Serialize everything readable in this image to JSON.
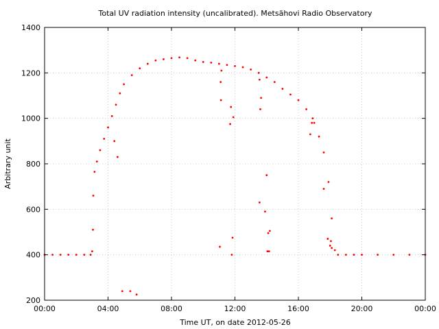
{
  "chart_data": {
    "type": "scatter",
    "title": "Total UV radiation intensity (uncalibrated). Metsähovi Radio Observatory",
    "xlabel": "Time UT, on date 2012-05-26",
    "ylabel": "Arbitrary unit",
    "xlim": [
      0,
      24
    ],
    "ylim": [
      200,
      1400
    ],
    "x_ticks": [
      0,
      4,
      8,
      12,
      16,
      20,
      24
    ],
    "x_tick_labels": [
      "00:00",
      "04:00",
      "08:00",
      "12:00",
      "16:00",
      "20:00",
      "00:00"
    ],
    "y_ticks": [
      200,
      400,
      600,
      800,
      1000,
      1200,
      1400
    ],
    "y_tick_labels": [
      "200",
      "400",
      "600",
      "800",
      "1000",
      "1200",
      "1400"
    ],
    "grid": true,
    "marker_color": "#ff0000",
    "series": [
      {
        "x": [
          0,
          0.5,
          1.0,
          1.5,
          2.0,
          2.5,
          2.9,
          3.15,
          3.3,
          3.5,
          3.75,
          4.0,
          4.25,
          4.5,
          4.75,
          5.0,
          5.5,
          6.0,
          6.5,
          7.0,
          7.5,
          8.0,
          8.5,
          9.0,
          9.5,
          10.0,
          10.5,
          11.0,
          11.5,
          12.0,
          12.5,
          13.0,
          13.5,
          14.0,
          14.5,
          15.0,
          15.5,
          16.0,
          16.5,
          17.0,
          17.3,
          17.6,
          17.9,
          18.1,
          18.3,
          18.5,
          19.0,
          19.5,
          20.0,
          21.0,
          22.0,
          23.0,
          24.0,
          3.0,
          3.05,
          3.07,
          4.4,
          4.6,
          4.9,
          5.4,
          5.8,
          11.05,
          11.1,
          11.12,
          11.15,
          11.7,
          11.75,
          11.8,
          11.85,
          11.9,
          13.55,
          13.6,
          13.65,
          13.55,
          13.9,
          14.0,
          14.05,
          14.1,
          14.15,
          14.2,
          16.75,
          16.85,
          16.9,
          17.6,
          17.85,
          18.0,
          18.05,
          18.1
        ],
        "y": [
          400,
          400,
          400,
          400,
          400,
          400,
          400,
          765,
          810,
          860,
          910,
          960,
          1010,
          1060,
          1110,
          1150,
          1190,
          1220,
          1240,
          1255,
          1260,
          1265,
          1268,
          1265,
          1255,
          1248,
          1245,
          1240,
          1235,
          1230,
          1225,
          1215,
          1200,
          1180,
          1160,
          1130,
          1105,
          1080,
          1040,
          980,
          920,
          850,
          720,
          560,
          420,
          400,
          400,
          400,
          400,
          400,
          400,
          400,
          400,
          415,
          510,
          660,
          900,
          830,
          240,
          240,
          225,
          435,
          1160,
          1080,
          1210,
          975,
          1050,
          400,
          475,
          1005,
          630,
          1040,
          1090,
          1170,
          590,
          750,
          415,
          495,
          415,
          505,
          930,
          980,
          1000,
          690,
          470,
          440,
          460,
          430
        ]
      }
    ]
  }
}
